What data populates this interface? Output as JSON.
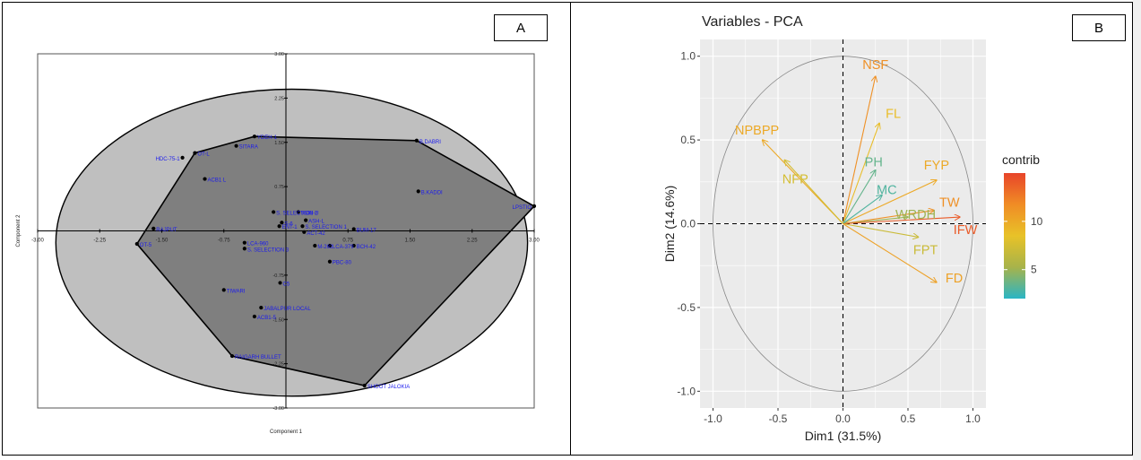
{
  "panels": {
    "a_label": "A",
    "b_label": "B"
  },
  "chart_data": [
    {
      "type": "scatter",
      "panel": "A",
      "title": "",
      "xlabel": "Component 1",
      "ylabel": "Component 2",
      "xlim": [
        -3.0,
        3.0
      ],
      "ylim": [
        -3.0,
        3.0
      ],
      "x_ticks": [
        -3.0,
        -2.25,
        -1.5,
        -0.75,
        0.75,
        1.5,
        2.25,
        3.0
      ],
      "x_tick_labels": [
        "-3.00",
        "-2.25",
        "-1.50",
        "-0.75",
        "0.75",
        "1.50",
        "2.25",
        "3.00"
      ],
      "y_ticks": [
        3.0,
        2.25,
        1.5,
        0.75,
        -0.75,
        -1.5,
        -2.25,
        -3.0
      ],
      "y_tick_labels": [
        "3.00",
        "2.25",
        "1.50",
        "0.75",
        "-0.75",
        "-1.50",
        "-2.25",
        "-3.00"
      ],
      "grid": false,
      "point_color": "#000000",
      "label_color": "#1a1aee",
      "points": [
        {
          "name": "LPSTIO",
          "x": 3.0,
          "y": 0.42
        },
        {
          "name": "B.DABRI",
          "x": 1.58,
          "y": 1.53
        },
        {
          "name": "B.KADDI",
          "x": 1.6,
          "y": 0.67
        },
        {
          "name": "YDEH-1",
          "x": -0.38,
          "y": 1.6
        },
        {
          "name": "SITARA",
          "x": -0.6,
          "y": 1.44
        },
        {
          "name": "HDC-75-1",
          "x": -1.25,
          "y": 1.24
        },
        {
          "name": "OT-L",
          "x": -1.1,
          "y": 1.32
        },
        {
          "name": "ACB1 L",
          "x": -0.98,
          "y": 0.88
        },
        {
          "name": "RAJPUT",
          "x": -1.6,
          "y": 0.04
        },
        {
          "name": "OT-5",
          "x": -1.8,
          "y": -0.22
        },
        {
          "name": "S. SELECTION 2",
          "x": -0.15,
          "y": 0.32
        },
        {
          "name": "S-6",
          "x": -0.05,
          "y": 0.14
        },
        {
          "name": "ENT-1",
          "x": -0.08,
          "y": 0.08
        },
        {
          "name": "9608-U",
          "x": 0.15,
          "y": 0.32
        },
        {
          "name": "ASH-L",
          "x": 0.24,
          "y": 0.18
        },
        {
          "name": "S. SELECTION 1",
          "x": 0.2,
          "y": 0.08
        },
        {
          "name": "ACT-42",
          "x": 0.22,
          "y": -0.02
        },
        {
          "name": "BUM-17",
          "x": 0.82,
          "y": 0.03
        },
        {
          "name": "M-262",
          "x": 0.35,
          "y": -0.25
        },
        {
          "name": "LCA-379",
          "x": 0.53,
          "y": -0.25
        },
        {
          "name": "BCH-42",
          "x": 0.82,
          "y": -0.25
        },
        {
          "name": "LCA-960",
          "x": -0.5,
          "y": -0.2
        },
        {
          "name": "S. SELECTION 3",
          "x": -0.5,
          "y": -0.3
        },
        {
          "name": "PBC-80",
          "x": 0.53,
          "y": -0.52
        },
        {
          "name": "C5",
          "x": -0.07,
          "y": -0.88
        },
        {
          "name": "TIWARI",
          "x": -0.75,
          "y": -1.0
        },
        {
          "name": "JABALPUR LOCAL",
          "x": -0.3,
          "y": -1.3
        },
        {
          "name": "ACB1-5",
          "x": -0.38,
          "y": -1.45
        },
        {
          "name": "RAIGARH BULLET",
          "x": -0.65,
          "y": -2.12
        },
        {
          "name": "SHOOT JALOKIA",
          "x": 0.95,
          "y": -2.62
        }
      ],
      "hull_order": [
        "LPSTIO",
        "B.DABRI",
        "YDEH-1",
        "OT-L",
        "OT-5",
        "RAIGARH BULLET",
        "SHOOT JALOKIA"
      ],
      "ellipse": {
        "cx": 0.07,
        "cy": -0.2,
        "rx": 2.85,
        "ry": 2.6
      },
      "colors": {
        "plot_bg": "#ffffff",
        "ellipse_fill": "#bfbfbf",
        "hull_fill": "#7f7f7f"
      }
    },
    {
      "type": "scatter",
      "panel": "B",
      "title": "Variables - PCA",
      "xlabel": "Dim1 (31.5%)",
      "ylabel": "Dim2 (14.6%)",
      "xlim": [
        -1.0,
        1.0
      ],
      "ylim": [
        -1.0,
        1.0
      ],
      "x_ticks": [
        -1.0,
        -0.5,
        0.0,
        0.5,
        1.0
      ],
      "x_tick_labels": [
        "-1.0",
        "-0.5",
        "0.0",
        "0.5",
        "1.0"
      ],
      "y_ticks": [
        1.0,
        0.5,
        0.0,
        -0.5,
        -1.0
      ],
      "y_tick_labels": [
        "1.0",
        "0.5",
        "0.0",
        "-0.5",
        "-1.0"
      ],
      "grid": true,
      "legend": {
        "title": "contrib",
        "position": "right",
        "ticks": [
          "10",
          "5"
        ],
        "tick_values": [
          10,
          5
        ],
        "range": [
          2,
          15
        ],
        "gradient": [
          "#e8452a",
          "#f08c25",
          "#e8c228",
          "#a7b34a",
          "#2ab5c5"
        ]
      },
      "series": [
        {
          "name": "NSF",
          "x": 0.25,
          "y": 0.88,
          "contrib": 11.5
        },
        {
          "name": "FL",
          "x": 0.28,
          "y": 0.6,
          "contrib": 8.8
        },
        {
          "name": "NPBPP",
          "x": -0.62,
          "y": 0.5,
          "contrib": 10.0
        },
        {
          "name": "NFP",
          "x": -0.45,
          "y": 0.38,
          "contrib": 7.5
        },
        {
          "name": "PH",
          "x": 0.25,
          "y": 0.32,
          "contrib": 3.5
        },
        {
          "name": "FYP",
          "x": 0.72,
          "y": 0.26,
          "contrib": 10.0
        },
        {
          "name": "MC",
          "x": 0.3,
          "y": 0.17,
          "contrib": 3.0
        },
        {
          "name": "TW",
          "x": 0.7,
          "y": 0.08,
          "contrib": 11.5
        },
        {
          "name": "WRDH",
          "x": 0.5,
          "y": 0.04,
          "contrib": 5.0
        },
        {
          "name": "IFW",
          "x": 0.9,
          "y": 0.04,
          "contrib": 14.0
        },
        {
          "name": "FPT",
          "x": 0.58,
          "y": -0.08,
          "contrib": 7.0
        },
        {
          "name": "FD",
          "x": 0.72,
          "y": -0.35,
          "contrib": 10.5
        }
      ],
      "colors": {
        "panel_bg": "#ebebeb",
        "grid": "#ffffff",
        "circle": "#888888"
      }
    }
  ]
}
